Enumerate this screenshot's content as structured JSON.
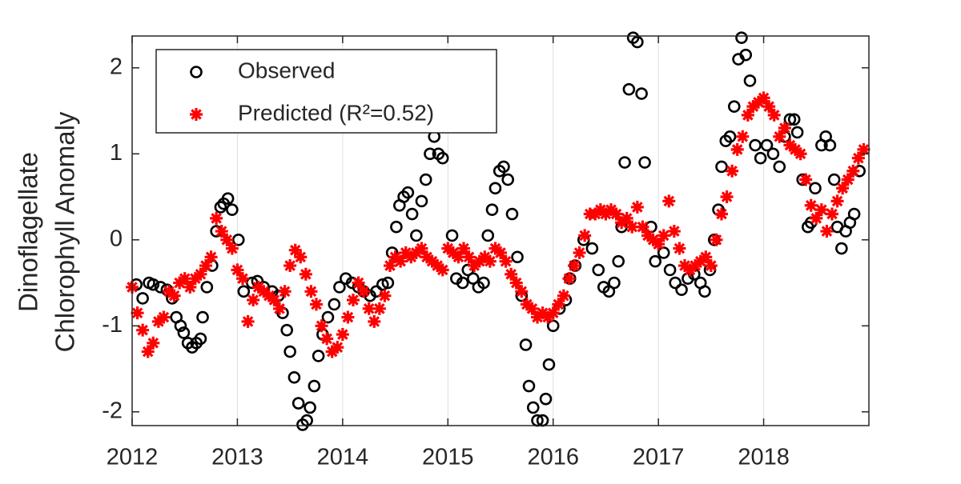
{
  "chart_data": {
    "type": "scatter",
    "ylabel": [
      "Dinoflagellate",
      "Chlorophyll Anomaly"
    ],
    "xlim": [
      2012,
      2019
    ],
    "xticks": [
      2012,
      2013,
      2014,
      2015,
      2016,
      2017,
      2018
    ],
    "ylim": [
      -2.16,
      2.37
    ],
    "yticks": [
      -2,
      -1,
      0,
      1,
      2
    ],
    "grid": "x",
    "legend": "upper left",
    "series": [
      {
        "name": "Observed",
        "color": "#000000",
        "marker": "circle",
        "x": [
          2012.04,
          2012.1,
          2012.16,
          2012.2,
          2012.27,
          2012.33,
          2012.38,
          2012.42,
          2012.46,
          2012.49,
          2012.53,
          2012.57,
          2012.61,
          2012.65,
          2012.67,
          2012.71,
          2012.76,
          2012.8,
          2012.84,
          2012.87,
          2012.91,
          2012.95,
          2013.01,
          2013.06,
          2013.14,
          2013.19,
          2013.25,
          2013.33,
          2013.39,
          2013.43,
          2013.47,
          2013.5,
          2013.54,
          2013.58,
          2013.62,
          2013.66,
          2013.69,
          2013.73,
          2013.77,
          2013.81,
          2013.86,
          2013.92,
          2013.97,
          2014.03,
          2014.09,
          2014.15,
          2014.2,
          2014.26,
          2014.32,
          2014.38,
          2014.43,
          2014.47,
          2014.51,
          2014.54,
          2014.58,
          2014.62,
          2014.66,
          2014.7,
          2014.75,
          2014.79,
          2014.83,
          2014.87,
          2014.91,
          2014.95,
          2015.04,
          2015.08,
          2015.14,
          2015.19,
          2015.24,
          2015.29,
          2015.34,
          2015.38,
          2015.42,
          2015.45,
          2015.49,
          2015.53,
          2015.57,
          2015.61,
          2015.66,
          2015.7,
          2015.74,
          2015.77,
          2015.81,
          2015.85,
          2015.9,
          2015.93,
          2015.96,
          2016.0,
          2016.06,
          2016.12,
          2016.16,
          2016.21,
          2016.29,
          2016.37,
          2016.43,
          2016.48,
          2016.53,
          2016.58,
          2016.62,
          2016.65,
          2016.68,
          2016.72,
          2016.76,
          2016.8,
          2016.84,
          2016.87,
          2016.93,
          2016.97,
          2017.05,
          2017.11,
          2017.16,
          2017.22,
          2017.28,
          2017.34,
          2017.4,
          2017.44,
          2017.49,
          2017.53,
          2017.57,
          2017.6,
          2017.64,
          2017.68,
          2017.72,
          2017.76,
          2017.79,
          2017.83,
          2017.87,
          2017.92,
          2017.97,
          2018.03,
          2018.09,
          2018.15,
          2018.2,
          2018.25,
          2018.29,
          2018.32,
          2018.37,
          2018.42,
          2018.45,
          2018.49,
          2018.55,
          2018.59,
          2018.63,
          2018.67,
          2018.7,
          2018.74,
          2018.78,
          2018.82,
          2018.86,
          2018.91
        ],
        "values": [
          -0.52,
          -0.68,
          -0.5,
          -0.52,
          -0.55,
          -0.58,
          -0.68,
          -0.9,
          -1.0,
          -1.08,
          -1.2,
          -1.25,
          -1.2,
          -1.15,
          -0.9,
          -0.55,
          -0.3,
          0.1,
          0.38,
          0.42,
          0.48,
          0.35,
          0.0,
          -0.6,
          -0.5,
          -0.48,
          -0.55,
          -0.6,
          -0.65,
          -0.85,
          -1.05,
          -1.3,
          -1.6,
          -1.9,
          -2.15,
          -2.1,
          -1.95,
          -1.7,
          -1.35,
          -1.1,
          -0.9,
          -0.75,
          -0.55,
          -0.45,
          -0.5,
          -0.55,
          -0.6,
          -0.65,
          -0.6,
          -0.52,
          -0.5,
          -0.15,
          0.15,
          0.4,
          0.5,
          0.55,
          0.3,
          0.05,
          0.45,
          0.7,
          1.0,
          1.2,
          1.0,
          0.95,
          0.05,
          -0.45,
          -0.5,
          -0.35,
          -0.45,
          -0.55,
          -0.5,
          0.05,
          0.35,
          0.6,
          0.8,
          0.85,
          0.7,
          0.3,
          -0.2,
          -0.65,
          -1.22,
          -1.7,
          -1.95,
          -2.1,
          -2.1,
          -1.85,
          -1.45,
          -1.0,
          -0.8,
          -0.7,
          -0.45,
          -0.3,
          0.0,
          -0.1,
          -0.35,
          -0.55,
          -0.6,
          -0.5,
          -0.25,
          0.15,
          0.9,
          1.75,
          2.35,
          2.3,
          1.7,
          0.9,
          0.15,
          -0.25,
          -0.15,
          -0.35,
          -0.5,
          -0.58,
          -0.45,
          -0.4,
          -0.5,
          -0.6,
          -0.35,
          0.0,
          0.35,
          0.85,
          1.15,
          1.2,
          1.55,
          2.1,
          2.35,
          2.15,
          1.85,
          1.1,
          0.95,
          1.1,
          1.0,
          0.85,
          1.2,
          1.4,
          1.4,
          1.25,
          0.7,
          0.15,
          0.2,
          0.6,
          1.1,
          1.2,
          1.1,
          0.7,
          0.15,
          -0.1,
          0.1,
          0.2,
          0.3,
          0.8
        ]
      },
      {
        "name": "Predicted (R²=0.52)",
        "color": "#ff0000",
        "marker": "star",
        "x": [
          2012.0,
          2012.05,
          2012.1,
          2012.15,
          2012.2,
          2012.25,
          2012.3,
          2012.35,
          2012.4,
          2012.45,
          2012.5,
          2012.55,
          2012.6,
          2012.65,
          2012.7,
          2012.75,
          2012.8,
          2012.85,
          2012.9,
          2012.95,
          2013.0,
          2013.05,
          2013.1,
          2013.15,
          2013.2,
          2013.25,
          2013.3,
          2013.35,
          2013.4,
          2013.45,
          2013.5,
          2013.55,
          2013.6,
          2013.65,
          2013.7,
          2013.75,
          2013.8,
          2013.85,
          2013.9,
          2013.95,
          2014.0,
          2014.05,
          2014.1,
          2014.15,
          2014.2,
          2014.25,
          2014.3,
          2014.35,
          2014.4,
          2014.45,
          2014.5,
          2014.55,
          2014.6,
          2014.65,
          2014.7,
          2014.75,
          2014.8,
          2014.85,
          2014.9,
          2014.95,
          2015.0,
          2015.05,
          2015.1,
          2015.15,
          2015.2,
          2015.25,
          2015.3,
          2015.35,
          2015.4,
          2015.45,
          2015.5,
          2015.55,
          2015.6,
          2015.65,
          2015.7,
          2015.75,
          2015.8,
          2015.85,
          2015.9,
          2015.95,
          2016.0,
          2016.05,
          2016.1,
          2016.15,
          2016.2,
          2016.25,
          2016.3,
          2016.35,
          2016.4,
          2016.45,
          2016.5,
          2016.55,
          2016.6,
          2016.65,
          2016.7,
          2016.75,
          2016.8,
          2016.85,
          2016.9,
          2016.95,
          2017.0,
          2017.05,
          2017.1,
          2017.15,
          2017.2,
          2017.25,
          2017.3,
          2017.35,
          2017.4,
          2017.45,
          2017.5,
          2017.55,
          2017.6,
          2017.65,
          2017.7,
          2017.75,
          2017.8,
          2017.85,
          2017.9,
          2017.95,
          2018.0,
          2018.05,
          2018.1,
          2018.15,
          2018.2,
          2018.25,
          2018.3,
          2018.35,
          2018.4,
          2018.45,
          2018.5,
          2018.55,
          2018.6,
          2018.65,
          2018.7,
          2018.75,
          2018.8,
          2018.85,
          2018.9,
          2018.95
        ],
        "values": [
          -0.55,
          -0.85,
          -1.05,
          -1.3,
          -1.2,
          -0.95,
          -0.9,
          -0.6,
          -0.65,
          -0.5,
          -0.45,
          -0.55,
          -0.45,
          -0.4,
          -0.3,
          -0.2,
          0.25,
          0.1,
          0.0,
          -0.1,
          -0.35,
          -0.45,
          -0.95,
          -0.7,
          -0.55,
          -0.6,
          -0.65,
          -0.7,
          -0.8,
          -0.6,
          -0.3,
          -0.12,
          -0.2,
          -0.4,
          -0.6,
          -0.75,
          -1.0,
          -1.15,
          -1.3,
          -1.25,
          -1.1,
          -0.9,
          -0.7,
          -0.5,
          -0.6,
          -0.8,
          -0.95,
          -0.8,
          -0.65,
          -0.3,
          -0.2,
          -0.25,
          -0.15,
          -0.2,
          -0.15,
          -0.1,
          -0.2,
          -0.25,
          -0.3,
          -0.35,
          -0.1,
          -0.15,
          -0.2,
          -0.1,
          -0.2,
          -0.3,
          -0.25,
          -0.2,
          -0.25,
          -0.1,
          -0.15,
          -0.25,
          -0.4,
          -0.5,
          -0.6,
          -0.75,
          -0.8,
          -0.9,
          -0.85,
          -0.9,
          -0.85,
          -0.75,
          -0.65,
          -0.45,
          -0.3,
          -0.15,
          0.05,
          0.3,
          0.3,
          0.35,
          0.3,
          0.35,
          0.3,
          0.2,
          0.25,
          0.15,
          0.38,
          0.15,
          0.05,
          0.0,
          -0.05,
          0.05,
          0.45,
          0.1,
          -0.1,
          -0.3,
          -0.35,
          -0.3,
          -0.25,
          -0.2,
          -0.3,
          0.0,
          0.3,
          0.5,
          0.8,
          1.05,
          1.2,
          1.45,
          1.55,
          1.6,
          1.65,
          1.55,
          1.45,
          1.2,
          1.3,
          1.1,
          1.05,
          1.0,
          0.7,
          0.4,
          0.25,
          0.35,
          0.1,
          0.3,
          0.45,
          0.6,
          0.7,
          0.8,
          0.95,
          1.05
        ]
      }
    ]
  }
}
